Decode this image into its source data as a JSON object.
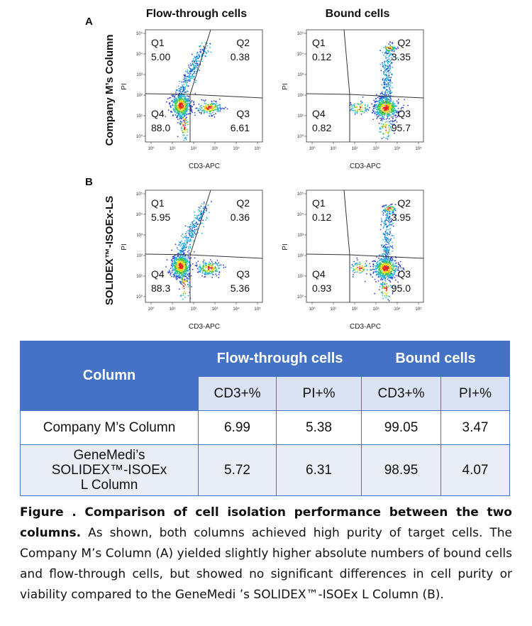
{
  "figure": {
    "column_titles": [
      "Flow-through cells",
      "Bound cells"
    ],
    "x_axis_label": "CD3-APC",
    "y_axis_label": "PI",
    "tick_labels": [
      "10⁰",
      "10¹",
      "10²",
      "10³",
      "10⁴",
      "10⁵"
    ],
    "quadrant_names": [
      "Q1",
      "Q2",
      "Q3",
      "Q4"
    ],
    "panels": [
      {
        "label": "A",
        "row_label": "Company M’s Column",
        "plots": [
          {
            "quadrant_values": [
              "5.00",
              "0.38",
              "6.61",
              "88.0"
            ]
          },
          {
            "quadrant_values": [
              "0.12",
              "3.35",
              "95.7",
              "0.82"
            ]
          }
        ]
      },
      {
        "label": "B",
        "row_label": "SOLIDEX™-ISOEx-LS",
        "plots": [
          {
            "quadrant_values": [
              "5.95",
              "0.36",
              "5.36",
              "88.3"
            ]
          },
          {
            "quadrant_values": [
              "0.12",
              "3.95",
              "95.0",
              "0.93"
            ]
          }
        ]
      }
    ]
  },
  "table": {
    "header": {
      "column": "Column",
      "groups": [
        "Flow-through cells",
        "Bound cells"
      ],
      "subheaders": [
        "CD3+%",
        "PI+%",
        "CD3+%",
        "PI+%"
      ]
    },
    "rows": [
      [
        "Company M’s Column",
        "6.99",
        "5.38",
        "99.05",
        "3.47"
      ],
      [
        "GeneMedi’s SOLIDEX™-ISOEx L Column",
        "5.72",
        "6.31",
        "98.95",
        "4.07"
      ]
    ]
  },
  "caption": {
    "bold": "Figure . Comparison of cell isolation performance between the two columns.",
    "text": " As shown, both columns achieved high purity of target cells. The Company M’s Column (A) yielded slightly higher absolute numbers of bound cells and flow-through cells, but showed no significant differences in cell purity or viability compared to the GeneMedi ’s SOLIDEX™-ISOEx L Column (B)."
  }
}
